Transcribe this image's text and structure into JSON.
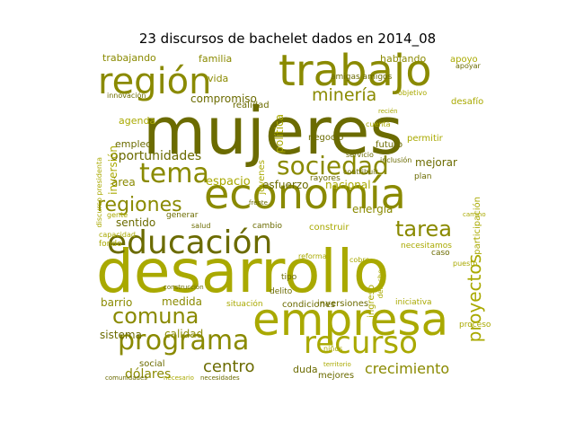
{
  "title": "23 discursos de bachelet dados en 2014_08",
  "colors": {
    "dark": "#6b6b00",
    "mid": "#8a8a00",
    "light": "#a9a900",
    "pale": "#c4c400"
  },
  "words": [
    {
      "text": "mujeres",
      "color": "dark"
    },
    {
      "text": "desarrollo",
      "color": "light"
    },
    {
      "text": "trabajo",
      "color": "mid"
    },
    {
      "text": "economía",
      "color": "mid"
    },
    {
      "text": "empresa",
      "color": "light"
    },
    {
      "text": "región",
      "color": "mid"
    },
    {
      "text": "educación",
      "color": "dark"
    },
    {
      "text": "programa",
      "color": "mid"
    },
    {
      "text": "recurso",
      "color": "light"
    },
    {
      "text": "sociedad",
      "color": "mid"
    },
    {
      "text": "tema",
      "color": "mid"
    },
    {
      "text": "comuna",
      "color": "mid"
    },
    {
      "text": "regiones",
      "color": "mid"
    },
    {
      "text": "tarea",
      "color": "mid"
    },
    {
      "text": "proyectos",
      "color": "light"
    },
    {
      "text": "minería",
      "color": "mid"
    },
    {
      "text": "centro",
      "color": "dark"
    },
    {
      "text": "crecimiento",
      "color": "mid"
    },
    {
      "text": "oportunidades",
      "color": "dark"
    },
    {
      "text": "compromiso",
      "color": "dark"
    },
    {
      "text": "dólares",
      "color": "mid"
    },
    {
      "text": "calidad",
      "color": "mid"
    },
    {
      "text": "sistema",
      "color": "dark"
    },
    {
      "text": "barrio",
      "color": "mid"
    },
    {
      "text": "medida",
      "color": "mid"
    },
    {
      "text": "trabajando",
      "color": "mid"
    },
    {
      "text": "esfuerzo",
      "color": "dark"
    },
    {
      "text": "nacional",
      "color": "light"
    },
    {
      "text": "mejorar",
      "color": "dark"
    },
    {
      "text": "inversión",
      "color": "light"
    },
    {
      "text": "familia",
      "color": "mid"
    },
    {
      "text": "espacio",
      "color": "light"
    },
    {
      "text": "área",
      "color": "mid"
    },
    {
      "text": "sentido",
      "color": "dark"
    },
    {
      "text": "duda",
      "color": "dark"
    },
    {
      "text": "energía",
      "color": "mid"
    },
    {
      "text": "vida",
      "color": "mid"
    },
    {
      "text": "hablando",
      "color": "mid"
    },
    {
      "text": "agenda",
      "color": "light"
    },
    {
      "text": "empleo",
      "color": "dark"
    },
    {
      "text": "política",
      "color": "light"
    },
    {
      "text": "realidad",
      "color": "dark"
    },
    {
      "text": "negocio",
      "color": "dark"
    },
    {
      "text": "futuro",
      "color": "dark"
    },
    {
      "text": "permitir",
      "color": "light"
    },
    {
      "text": "desafío",
      "color": "light"
    },
    {
      "text": "participación",
      "color": "light"
    },
    {
      "text": "jóvenes",
      "color": "light"
    },
    {
      "text": "apoyo",
      "color": "light"
    },
    {
      "text": "inversiones",
      "color": "dark"
    },
    {
      "text": "construir",
      "color": "light"
    },
    {
      "text": "ingreso",
      "color": "light"
    },
    {
      "text": "delito",
      "color": "dark"
    },
    {
      "text": "tipo",
      "color": "dark"
    },
    {
      "text": "situación",
      "color": "light"
    },
    {
      "text": "condiciones",
      "color": "dark"
    },
    {
      "text": "iniciativa",
      "color": "light"
    },
    {
      "text": "mejores",
      "color": "dark"
    },
    {
      "text": "social",
      "color": "dark"
    },
    {
      "text": "proceso",
      "color": "light"
    },
    {
      "text": "fondo",
      "color": "light"
    },
    {
      "text": "cambio",
      "color": "dark"
    },
    {
      "text": "rayores",
      "color": "dark"
    },
    {
      "text": "plan",
      "color": "dark"
    },
    {
      "text": "gente",
      "color": "light"
    },
    {
      "text": "caso",
      "color": "dark"
    },
    {
      "text": "puesto",
      "color": "light"
    },
    {
      "text": "necesitamos",
      "color": "light"
    },
    {
      "text": "servicio",
      "color": "dark"
    },
    {
      "text": "inclusión",
      "color": "dark"
    },
    {
      "text": "contribuir",
      "color": "dark"
    },
    {
      "text": "amigas amigos",
      "color": "dark"
    },
    {
      "text": "innovación",
      "color": "dark"
    },
    {
      "text": "discurso presidenta",
      "color": "light"
    },
    {
      "text": "comunidades",
      "color": "dark"
    },
    {
      "text": "necesario",
      "color": "light"
    },
    {
      "text": "necesidades",
      "color": "dark"
    },
    {
      "text": "construcción",
      "color": "dark"
    },
    {
      "text": "reforma",
      "color": "light"
    },
    {
      "text": "frente",
      "color": "dark"
    },
    {
      "text": "salud",
      "color": "dark"
    },
    {
      "text": "generar",
      "color": "dark"
    },
    {
      "text": "territorio",
      "color": "light"
    },
    {
      "text": "niños",
      "color": "light"
    },
    {
      "text": "cobre",
      "color": "light"
    },
    {
      "text": "cuenta",
      "color": "light"
    },
    {
      "text": "capacidad",
      "color": "light"
    },
    {
      "text": "apoyar",
      "color": "dark"
    },
    {
      "text": "objetivo",
      "color": "light"
    },
    {
      "text": "derecho",
      "color": "light"
    },
    {
      "text": "recién",
      "color": "light"
    },
    {
      "text": "camino",
      "color": "light"
    }
  ]
}
